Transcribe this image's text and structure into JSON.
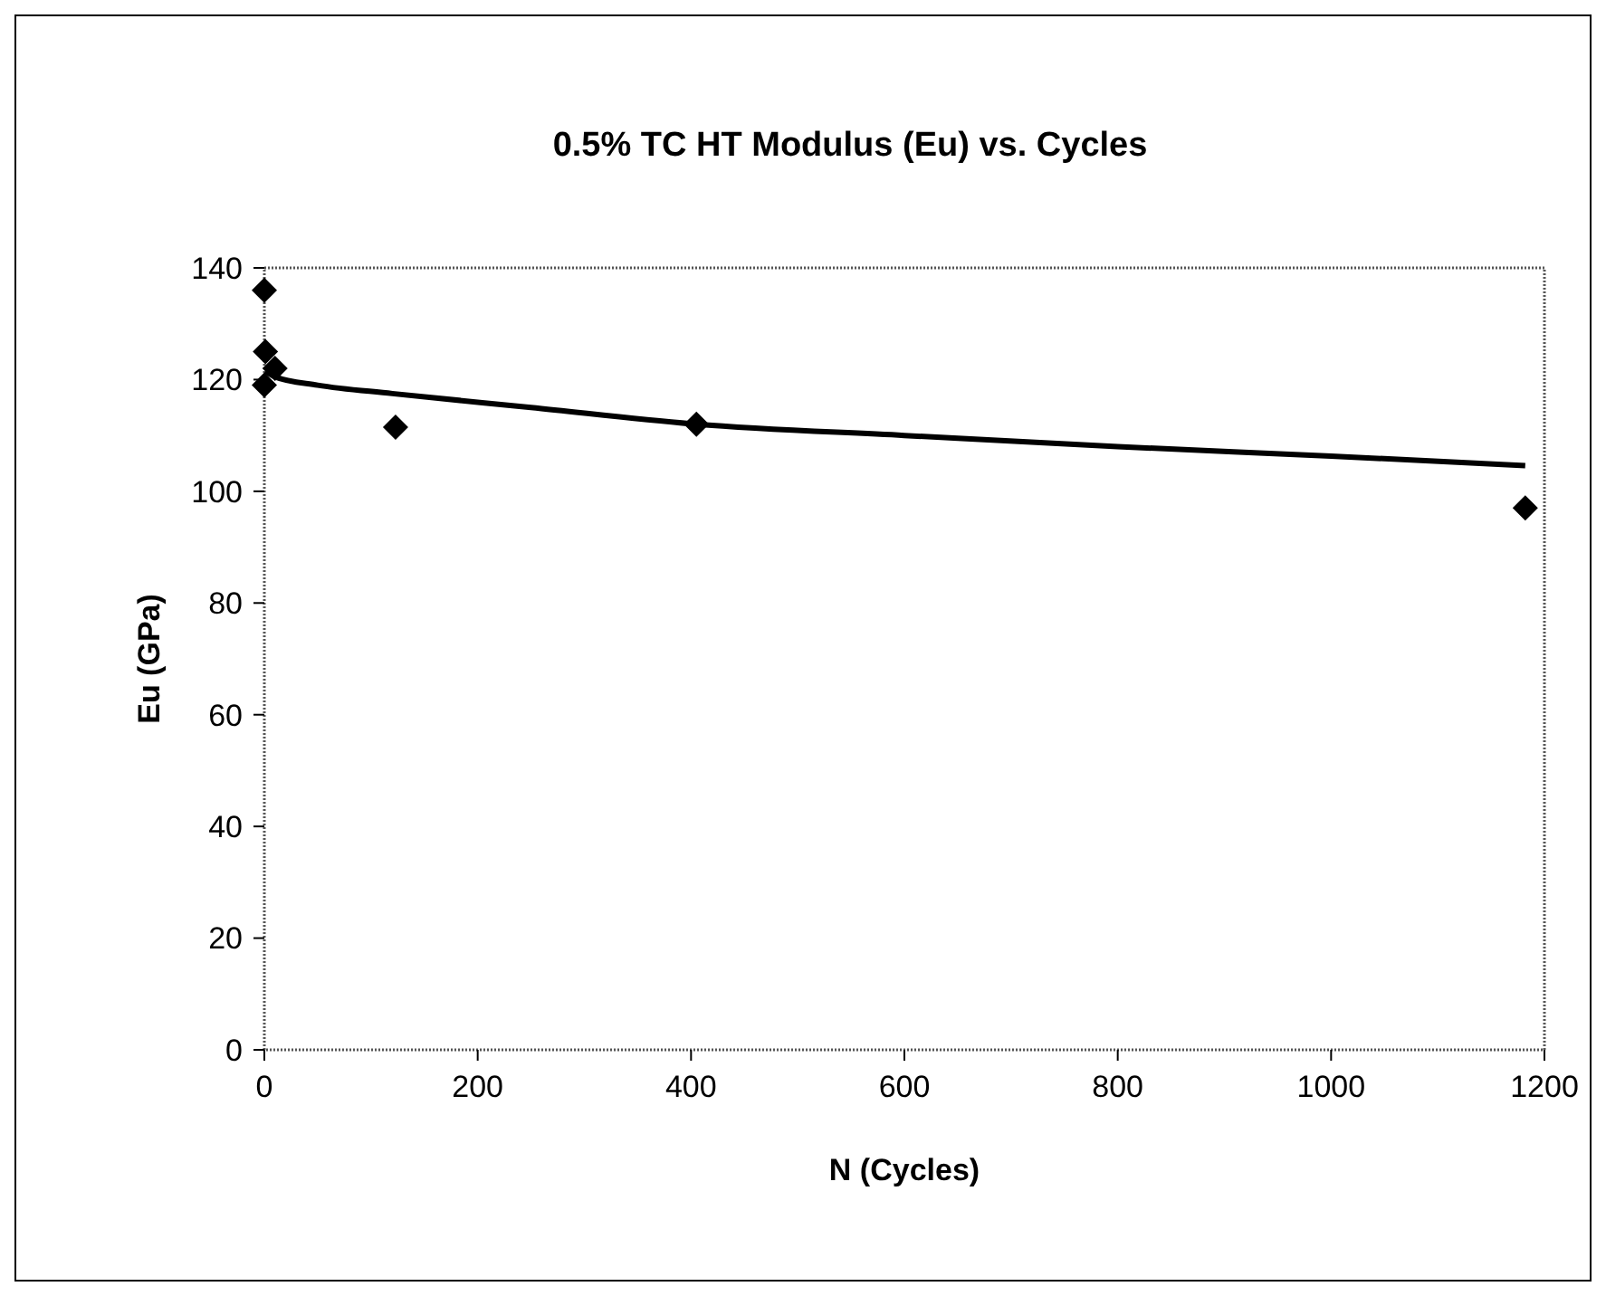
{
  "chart_data": {
    "type": "scatter",
    "title": "0.5% TC HT Modulus (Eu) vs. Cycles",
    "xlabel": "N (Cycles)",
    "ylabel": "Eu (GPa)",
    "series": [
      {
        "color": "#000000",
        "marker": "diamond",
        "x": [
          0,
          1,
          10,
          0,
          123,
          405,
          1182
        ],
        "values": [
          136,
          125,
          122,
          119,
          111.5,
          112,
          97
        ]
      },
      {
        "type": "line",
        "color": "#000000",
        "marker": "none",
        "x": [
          1,
          10,
          50,
          120,
          250,
          405,
          600,
          800,
          1000,
          1182
        ],
        "values": [
          121.5,
          120.5,
          119,
          117.5,
          115,
          112,
          110,
          108,
          106.3,
          104.6
        ]
      }
    ],
    "xlim": [
      0,
      1200
    ],
    "xticks": [
      0,
      200,
      400,
      600,
      800,
      1000,
      1200
    ],
    "ylim": [
      0,
      140
    ],
    "yticks": [
      0,
      20,
      40,
      60,
      80,
      100,
      120,
      140
    ],
    "grid": false
  }
}
